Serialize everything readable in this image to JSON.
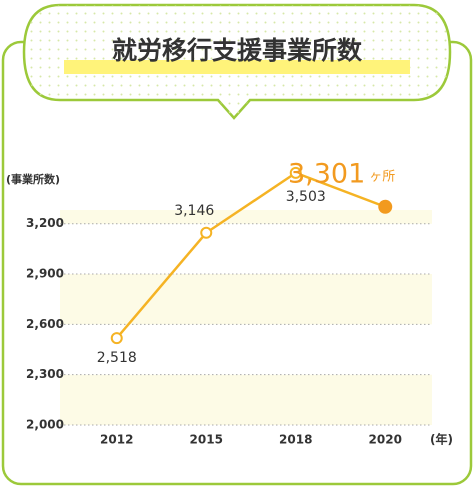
{
  "chart_data": {
    "type": "line",
    "title": "就労移行支援事業所数",
    "y_axis_label": "(事業所数)",
    "x_axis_label": "(年)",
    "categories": [
      "2012",
      "2015",
      "2018",
      "2020"
    ],
    "series": [
      {
        "name": "事業所数",
        "color": "#f5b324",
        "highlight_color": "#f29a1f",
        "values": [
          2518,
          3146,
          3503,
          3301
        ],
        "value_labels": [
          "2,518",
          "3,146",
          "3,503",
          "3,301"
        ]
      }
    ],
    "unit_label": "ヶ所",
    "ylim": [
      2000,
      3550
    ],
    "yticks": [
      {
        "value": 2000,
        "label": "2,000"
      },
      {
        "value": 2300,
        "label": "2,300"
      },
      {
        "value": 2600,
        "label": "2,600"
      },
      {
        "value": 2900,
        "label": "2,900"
      },
      {
        "value": 3200,
        "label": "3,200"
      }
    ],
    "grid": true
  }
}
